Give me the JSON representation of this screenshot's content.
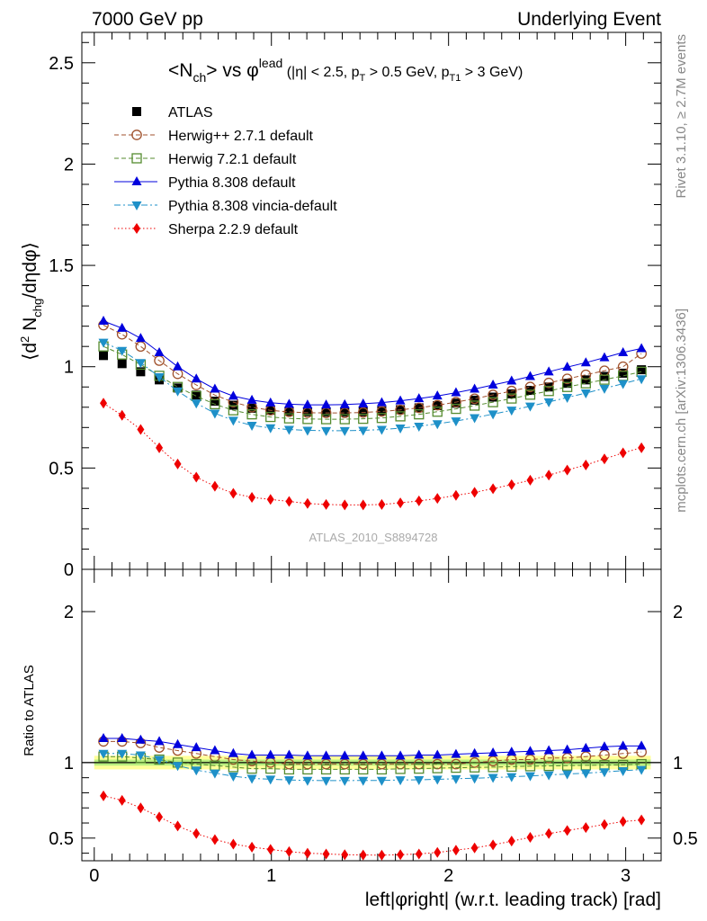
{
  "header": {
    "left": "7000 GeV pp",
    "right": "Underlying Event"
  },
  "side_labels": {
    "rivet": "Rivet 3.1.10, ≥ 2.7M events",
    "mcplots": "mcplots.cern.ch [arXiv:1306.3436]"
  },
  "watermark": "ATLAS_2010_S8894728",
  "plot_title": {
    "main": "<N",
    "sub1": "ch",
    "mid": "> vs φ",
    "sup1": "lead",
    "cuts_a": " (|η| < 2.5, p",
    "sub2": "T",
    "cuts_b": " > 0.5 GeV, p",
    "sub3": "T1",
    "cuts_c": " > 3 GeV)"
  },
  "y_title": {
    "a": "⟨d",
    "sup": "2",
    "b": " N",
    "sub": "chg",
    "c": "/dηdφ⟩"
  },
  "ratio_ylabel": "Ratio to ATLAS",
  "x_title": "left|φright| (w.r.t. leading track) [rad]",
  "legend": [
    {
      "label": "ATLAS"
    },
    {
      "label": "Herwig++ 2.7.1 default"
    },
    {
      "label": "Herwig 7.2.1 default"
    },
    {
      "label": "Pythia 8.308 default"
    },
    {
      "label": "Pythia 8.308 vincia-default"
    },
    {
      "label": "Sherpa 2.2.9 default"
    }
  ],
  "chart_data": {
    "type": "scatter",
    "x_range": [
      -0.07,
      3.2
    ],
    "main_ylim": [
      0,
      2.65
    ],
    "ratio_ylim": [
      0.35,
      2.28
    ],
    "x_ticks": [
      "0",
      "1",
      "2",
      "3"
    ],
    "main_y_ticks": [
      "0",
      "0.5",
      "1",
      "1.5",
      "2",
      "2.5"
    ],
    "ratio_y_ticks": [
      "0.5",
      "1",
      "2"
    ],
    "x": [
      0.052,
      0.157,
      0.262,
      0.367,
      0.471,
      0.576,
      0.681,
      0.785,
      0.89,
      0.995,
      1.1,
      1.204,
      1.309,
      1.414,
      1.518,
      1.623,
      1.728,
      1.833,
      1.937,
      2.042,
      2.147,
      2.251,
      2.356,
      2.461,
      2.566,
      2.67,
      2.775,
      2.88,
      2.985,
      3.089
    ],
    "series": [
      {
        "name": "ATLAS",
        "color": "#000000",
        "marker": "filled-square",
        "line": "none",
        "values": [
          1.055,
          1.015,
          0.975,
          0.935,
          0.895,
          0.86,
          0.83,
          0.81,
          0.795,
          0.785,
          0.78,
          0.778,
          0.776,
          0.776,
          0.778,
          0.782,
          0.788,
          0.797,
          0.808,
          0.82,
          0.835,
          0.85,
          0.866,
          0.883,
          0.9,
          0.918,
          0.935,
          0.952,
          0.968,
          0.985
        ],
        "ratio": [
          1,
          1,
          1,
          1,
          1,
          1,
          1,
          1,
          1,
          1,
          1,
          1,
          1,
          1,
          1,
          1,
          1,
          1,
          1,
          1,
          1,
          1,
          1,
          1,
          1,
          1,
          1,
          1,
          1,
          1
        ]
      },
      {
        "name": "Herwig++ 2.7.1 default",
        "color": "#a0522d",
        "marker": "open-circle",
        "line": "dashed",
        "values": [
          1.205,
          1.16,
          1.1,
          1.03,
          0.965,
          0.91,
          0.86,
          0.825,
          0.8,
          0.785,
          0.777,
          0.773,
          0.772,
          0.772,
          0.774,
          0.779,
          0.787,
          0.797,
          0.81,
          0.825,
          0.842,
          0.861,
          0.88,
          0.9,
          0.92,
          0.94,
          0.96,
          0.98,
          1.0,
          1.065
        ],
        "ratio": [
          1.14,
          1.14,
          1.13,
          1.1,
          1.08,
          1.06,
          1.04,
          1.02,
          1.01,
          1.0,
          0.99,
          0.99,
          0.99,
          0.99,
          0.99,
          0.99,
          0.99,
          0.99,
          0.99,
          0.99,
          1.0,
          1.01,
          1.02,
          1.02,
          1.03,
          1.03,
          1.04,
          1.05,
          1.06,
          1.07
        ]
      },
      {
        "name": "Herwig 7.2.1 default",
        "color": "#558b2f",
        "marker": "open-square",
        "line": "dashed",
        "values": [
          1.1,
          1.06,
          1.01,
          0.955,
          0.9,
          0.855,
          0.815,
          0.785,
          0.765,
          0.752,
          0.745,
          0.742,
          0.741,
          0.741,
          0.743,
          0.747,
          0.755,
          0.765,
          0.778,
          0.792,
          0.808,
          0.825,
          0.843,
          0.862,
          0.88,
          0.9,
          0.918,
          0.936,
          0.955,
          0.975
        ],
        "ratio": [
          1.04,
          1.04,
          1.03,
          1.02,
          1.0,
          0.99,
          0.98,
          0.97,
          0.96,
          0.96,
          0.955,
          0.955,
          0.955,
          0.955,
          0.955,
          0.955,
          0.958,
          0.96,
          0.963,
          0.966,
          0.968,
          0.97,
          0.973,
          0.976,
          0.978,
          0.98,
          0.982,
          0.983,
          0.985,
          0.99
        ]
      },
      {
        "name": "Pythia 8.308 default",
        "color": "#0000dd",
        "marker": "filled-triangle-up",
        "line": "solid",
        "values": [
          1.225,
          1.19,
          1.14,
          1.07,
          1.0,
          0.94,
          0.89,
          0.855,
          0.835,
          0.822,
          0.815,
          0.812,
          0.812,
          0.813,
          0.817,
          0.823,
          0.832,
          0.843,
          0.856,
          0.872,
          0.89,
          0.91,
          0.93,
          0.952,
          0.975,
          0.998,
          1.02,
          1.045,
          1.07,
          1.09
        ],
        "ratio": [
          1.16,
          1.16,
          1.15,
          1.14,
          1.12,
          1.1,
          1.08,
          1.06,
          1.05,
          1.05,
          1.05,
          1.045,
          1.045,
          1.045,
          1.045,
          1.045,
          1.045,
          1.05,
          1.05,
          1.055,
          1.06,
          1.065,
          1.07,
          1.075,
          1.08,
          1.085,
          1.095,
          1.105,
          1.11,
          1.11
        ]
      },
      {
        "name": "Pythia 8.308 vincia-default",
        "color": "#1e90c8",
        "marker": "filled-triangle-down",
        "line": "dashdot",
        "values": [
          1.12,
          1.08,
          1.02,
          0.95,
          0.88,
          0.82,
          0.77,
          0.735,
          0.71,
          0.698,
          0.69,
          0.686,
          0.684,
          0.684,
          0.686,
          0.69,
          0.697,
          0.706,
          0.718,
          0.732,
          0.748,
          0.766,
          0.785,
          0.805,
          0.826,
          0.848,
          0.87,
          0.893,
          0.916,
          0.94
        ],
        "ratio": [
          1.06,
          1.06,
          1.05,
          1.02,
          0.98,
          0.95,
          0.93,
          0.91,
          0.895,
          0.89,
          0.885,
          0.882,
          0.881,
          0.881,
          0.882,
          0.882,
          0.885,
          0.886,
          0.889,
          0.893,
          0.896,
          0.901,
          0.906,
          0.912,
          0.918,
          0.924,
          0.93,
          0.938,
          0.946,
          0.954
        ]
      },
      {
        "name": "Sherpa 2.2.9 default",
        "color": "#ee0000",
        "marker": "filled-diamond",
        "line": "dotted",
        "values": [
          0.82,
          0.76,
          0.69,
          0.6,
          0.52,
          0.455,
          0.41,
          0.375,
          0.355,
          0.345,
          0.335,
          0.325,
          0.32,
          0.318,
          0.318,
          0.32,
          0.328,
          0.338,
          0.35,
          0.365,
          0.38,
          0.398,
          0.418,
          0.44,
          0.465,
          0.49,
          0.515,
          0.545,
          0.575,
          0.6
        ],
        "ratio": [
          0.78,
          0.75,
          0.7,
          0.64,
          0.58,
          0.53,
          0.49,
          0.46,
          0.44,
          0.425,
          0.41,
          0.4,
          0.395,
          0.39,
          0.388,
          0.387,
          0.39,
          0.395,
          0.405,
          0.42,
          0.435,
          0.455,
          0.48,
          0.505,
          0.53,
          0.55,
          0.57,
          0.59,
          0.61,
          0.62
        ]
      }
    ]
  }
}
